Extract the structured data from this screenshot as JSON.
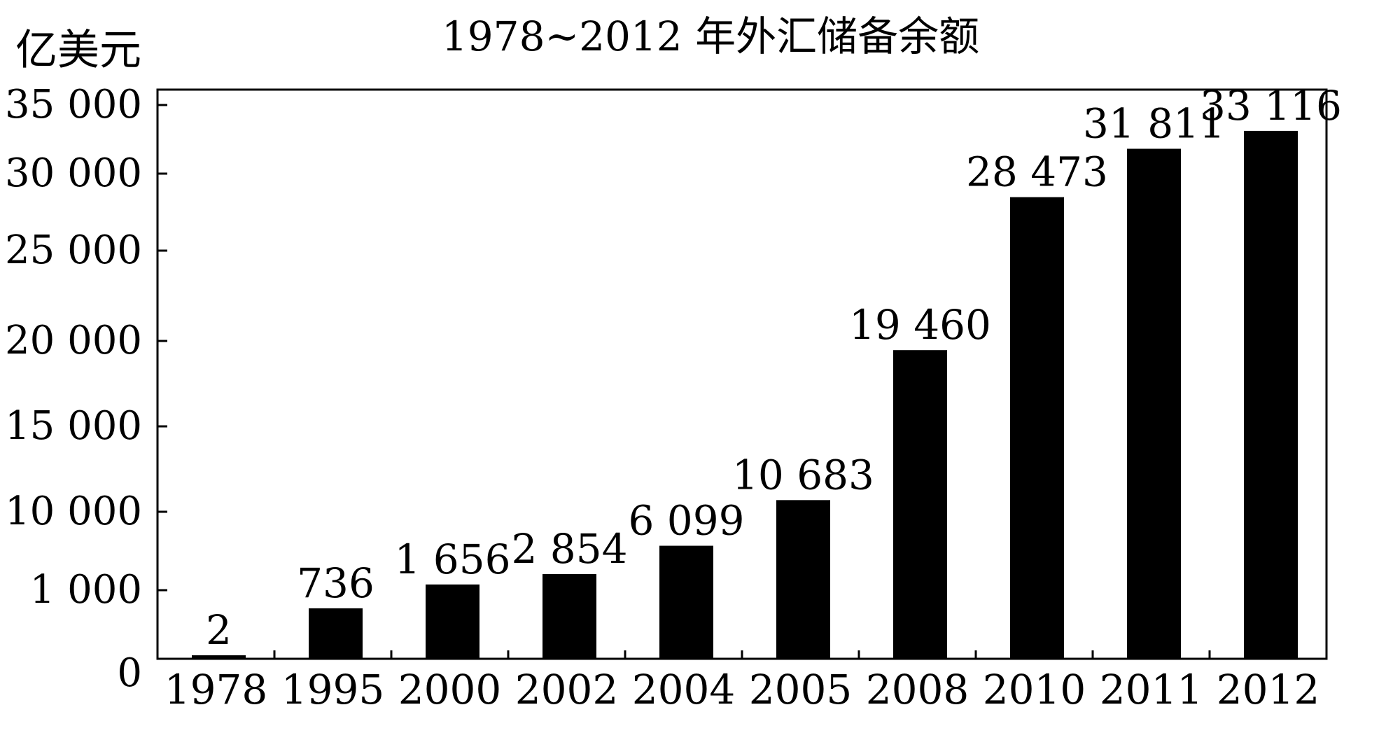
{
  "chart_data": {
    "type": "bar",
    "title": "1978~2012 年外汇储备余额",
    "ylabel": "亿美元",
    "xlabel": "",
    "categories": [
      "1978",
      "1995",
      "2000",
      "2002",
      "2004",
      "2005",
      "2008",
      "2010",
      "2011",
      "2012"
    ],
    "values": [
      2,
      736,
      1656,
      2854,
      6099,
      10683,
      19460,
      28473,
      31811,
      33116
    ],
    "value_labels": [
      "2",
      "736",
      "1 656",
      "2 854",
      "6 099",
      "10 683",
      "19 460",
      "28 473",
      "31 811",
      "33 116"
    ],
    "y_ticks": [
      {
        "value": 0,
        "label": "0"
      },
      {
        "value": 1000,
        "label": "1 000"
      },
      {
        "value": 10000,
        "label": "10 000"
      },
      {
        "value": 15000,
        "label": "15 000"
      },
      {
        "value": 20000,
        "label": "20 000"
      },
      {
        "value": 25000,
        "label": "25 000"
      },
      {
        "value": 30000,
        "label": "30 000"
      },
      {
        "value": 35000,
        "label": "35 000"
      }
    ],
    "ylim": [
      0,
      35000
    ],
    "y_scale": "broken",
    "grid": false,
    "legend": "none",
    "bar_color": "#000000"
  }
}
